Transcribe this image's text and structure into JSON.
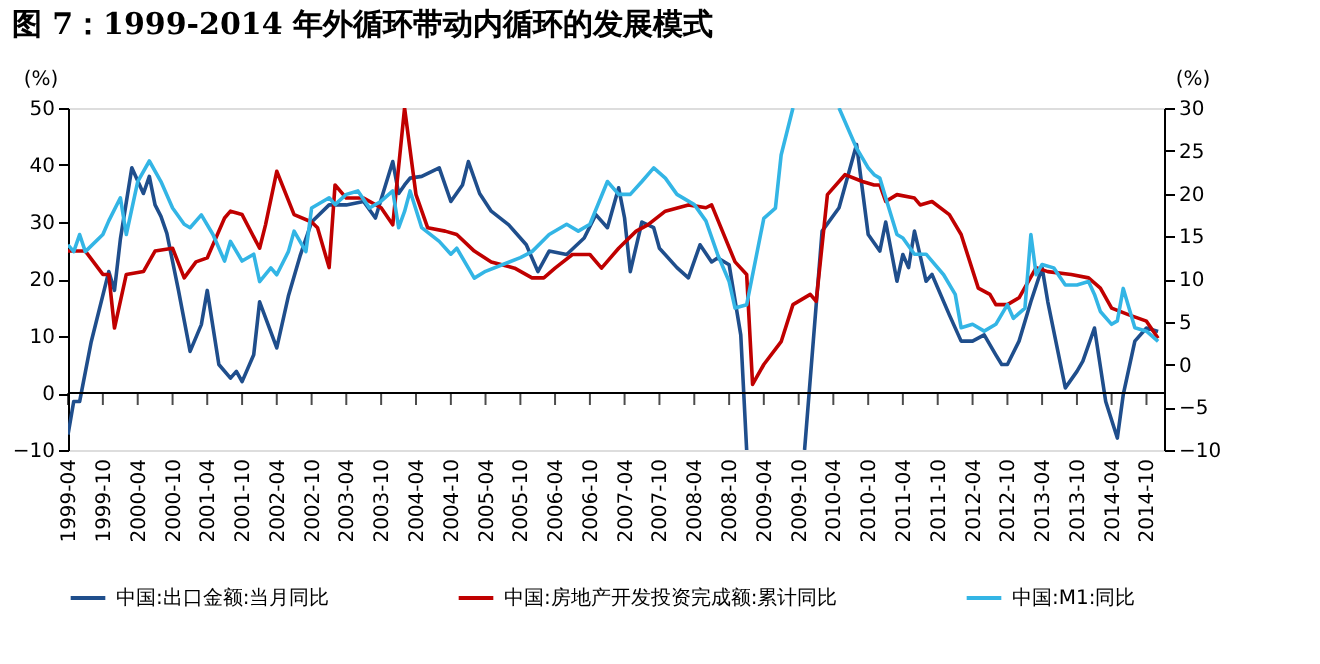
{
  "chart_data": {
    "type": "line",
    "title": "图 7：1999-2014 年外循环带动内循环的发展模式",
    "ylabel": "(%)",
    "y2label": "(%)",
    "xlim": [
      "1999-04",
      "2015-01"
    ],
    "xticks": [
      {
        "value": "1999-04",
        "label": "1999-04"
      },
      {
        "value": "1999-10",
        "label": "1999-10"
      },
      {
        "value": "2000-04",
        "label": "2000-04"
      },
      {
        "value": "2000-10",
        "label": "2000-10"
      },
      {
        "value": "2001-04",
        "label": "2001-04"
      },
      {
        "value": "2001-10",
        "label": "2001-10"
      },
      {
        "value": "2002-04",
        "label": "2002-04"
      },
      {
        "value": "2002-10",
        "label": "2002-10"
      },
      {
        "value": "2003-04",
        "label": "2003-04"
      },
      {
        "value": "2003-10",
        "label": "2003-10"
      },
      {
        "value": "2004-04",
        "label": "2004-04"
      },
      {
        "value": "2004-10",
        "label": "2004-10"
      },
      {
        "value": "2005-04",
        "label": "2005-04"
      },
      {
        "value": "2005-10",
        "label": "2005-10"
      },
      {
        "value": "2006-04",
        "label": "2006-04"
      },
      {
        "value": "2006-10",
        "label": "2006-10"
      },
      {
        "value": "2007-04",
        "label": "2007-04"
      },
      {
        "value": "2007-10",
        "label": "2007-10"
      },
      {
        "value": "2008-04",
        "label": "2008-04"
      },
      {
        "value": "2008-10",
        "label": "2008-10"
      },
      {
        "value": "2009-04",
        "label": "2009-04"
      },
      {
        "value": "2009-10",
        "label": "2009-10"
      },
      {
        "value": "2010-04",
        "label": "2010-04"
      },
      {
        "value": "2010-10",
        "label": "2010-10"
      },
      {
        "value": "2011-04",
        "label": "2011-04"
      },
      {
        "value": "2011-10",
        "label": "2011-10"
      },
      {
        "value": "2012-04",
        "label": "2012-04"
      },
      {
        "value": "2012-10",
        "label": "2012-10"
      },
      {
        "value": "2013-04",
        "label": "2013-04"
      },
      {
        "value": "2013-10",
        "label": "2013-10"
      },
      {
        "value": "2014-04",
        "label": "2014-04"
      },
      {
        "value": "2014-10",
        "label": "2014-10"
      }
    ],
    "ylim": [
      -10,
      50
    ],
    "yticks": [
      -10,
      0,
      10,
      20,
      30,
      40,
      50
    ],
    "y2lim": [
      -10,
      30
    ],
    "y2ticks": [
      -10,
      -5,
      0,
      5,
      10,
      15,
      20,
      25,
      30
    ],
    "legend": "bottom",
    "line_style": "solid",
    "series": [
      {
        "name": "中国:出口金额:当月同比",
        "color": "#1f4e8c",
        "x": [
          "1999-04",
          "1999-05",
          "1999-06",
          "1999-08",
          "1999-11",
          "1999-12",
          "2000-01",
          "2000-03",
          "2000-05",
          "2000-06",
          "2000-07",
          "2000-08",
          "2000-09",
          "2000-11",
          "2001-01",
          "2001-03",
          "2001-04",
          "2001-06",
          "2001-08",
          "2001-09",
          "2001-10",
          "2001-12",
          "2002-01",
          "2002-04",
          "2002-06",
          "2002-08",
          "2002-10",
          "2003-01",
          "2003-04",
          "2003-07",
          "2003-09",
          "2003-12",
          "2004-01",
          "2004-02",
          "2004-03",
          "2004-05",
          "2004-08",
          "2004-10",
          "2004-12",
          "2005-01",
          "2005-03",
          "2005-05",
          "2005-08",
          "2005-11",
          "2006-01",
          "2006-03",
          "2006-06",
          "2006-09",
          "2006-11",
          "2007-01",
          "2007-03",
          "2007-04",
          "2007-05",
          "2007-07",
          "2007-09",
          "2007-10",
          "2008-01",
          "2008-03",
          "2008-05",
          "2008-07",
          "2008-08",
          "2008-10",
          "2008-12",
          "2009-01",
          "2009-06",
          "2009-11",
          "2010-02",
          "2010-05",
          "2010-08",
          "2010-10",
          "2010-12",
          "2011-01",
          "2011-03",
          "2011-04",
          "2011-05",
          "2011-06",
          "2011-08",
          "2011-09",
          "2011-12",
          "2012-02",
          "2012-04",
          "2012-06",
          "2012-08",
          "2012-09",
          "2012-10",
          "2012-12",
          "2013-02",
          "2013-04",
          "2013-05",
          "2013-08",
          "2013-10",
          "2013-11",
          "2014-01",
          "2014-03",
          "2014-05",
          "2014-06",
          "2014-08",
          "2014-10",
          "2014-12"
        ],
        "values": [
          -7.3,
          -1.5,
          -1.5,
          9,
          21.3,
          18,
          27,
          39.5,
          35,
          38,
          33,
          31,
          28,
          18,
          7.3,
          12,
          18,
          5,
          2.6,
          3.8,
          2,
          6.7,
          16,
          7.9,
          17,
          24,
          30,
          33,
          33,
          33.6,
          30.7,
          40.6,
          35,
          36.5,
          37.7,
          38,
          39.5,
          33.6,
          36.5,
          40.6,
          35,
          31.9,
          29.5,
          26,
          21.3,
          24.9,
          24.3,
          27.2,
          31.3,
          29,
          36,
          30.7,
          21.3,
          30,
          29,
          25.4,
          22,
          20.2,
          26,
          23,
          23.7,
          22.5,
          10.2,
          -10,
          null,
          -10,
          28.4,
          32.5,
          43.6,
          27.8,
          24.9,
          30,
          19.6,
          24.3,
          22,
          28.4,
          19.6,
          20.8,
          13.7,
          9.1,
          9.1,
          10.2,
          6.7,
          5,
          5,
          9.1,
          16,
          22,
          16,
          0.9,
          3.8,
          5.6,
          11.4,
          -1.5,
          -7.9,
          -0.3,
          9.1,
          11.4,
          10.8
        ]
      },
      {
        "name": "中国:房地产开发投资完成额:累计同比",
        "color": "#c00000",
        "x": [
          "1999-04",
          "1999-07",
          "1999-10",
          "1999-11",
          "1999-12",
          "2000-02",
          "2000-05",
          "2000-07",
          "2000-10",
          "2000-12",
          "2001-02",
          "2001-04",
          "2001-07",
          "2001-08",
          "2001-10",
          "2002-01",
          "2002-02",
          "2002-04",
          "2002-07",
          "2002-10",
          "2002-11",
          "2003-01",
          "2003-02",
          "2003-04",
          "2003-07",
          "2003-10",
          "2003-12",
          "2004-02",
          "2004-04",
          "2004-06",
          "2004-09",
          "2004-11",
          "2005-02",
          "2005-05",
          "2005-09",
          "2005-12",
          "2006-02",
          "2006-04",
          "2006-07",
          "2006-10",
          "2006-12",
          "2007-03",
          "2007-06",
          "2007-08",
          "2007-11",
          "2008-03",
          "2008-06",
          "2008-07",
          "2008-11",
          "2009-01",
          "2009-02",
          "2009-04",
          "2009-07",
          "2009-09",
          "2009-12",
          "2010-01",
          "2010-03",
          "2010-06",
          "2010-09",
          "2010-11",
          "2010-12",
          "2011-01",
          "2011-03",
          "2011-06",
          "2011-07",
          "2011-09",
          "2011-12",
          "2012-02",
          "2012-05",
          "2012-07",
          "2012-08",
          "2012-10",
          "2012-12",
          "2013-03",
          "2013-05",
          "2013-09",
          "2013-12",
          "2014-02",
          "2014-04",
          "2014-07",
          "2014-10",
          "2014-12"
        ],
        "values": [
          24.9,
          24.9,
          20.8,
          20.8,
          11.4,
          20.8,
          21.3,
          24.9,
          25.4,
          20.2,
          23,
          23.7,
          30.7,
          31.9,
          31.3,
          25.4,
          29.5,
          38.9,
          31.3,
          30,
          29,
          22,
          36.5,
          34.2,
          34.2,
          32.5,
          29.5,
          50,
          34.8,
          29,
          28.4,
          27.8,
          24.9,
          23,
          21.9,
          20.2,
          20.2,
          21.9,
          24.3,
          24.3,
          21.9,
          25.4,
          28.4,
          29.5,
          31.9,
          33,
          32.5,
          33,
          23,
          20.8,
          1.5,
          5,
          9,
          15.5,
          17.3,
          16.1,
          34.8,
          38.3,
          37.1,
          36.5,
          36.5,
          33.6,
          34.8,
          34.2,
          33,
          33.6,
          31.3,
          27.8,
          18.4,
          17.3,
          15.5,
          15.5,
          16.7,
          22,
          21.3,
          20.8,
          20.2,
          18.4,
          14.9,
          13.7,
          12.6,
          9.6
        ]
      },
      {
        "name": "中国:M1:同比",
        "color": "#33b5e5",
        "axis": "y2",
        "x": [
          "1999-04",
          "1999-05",
          "1999-06",
          "1999-07",
          "1999-10",
          "1999-11",
          "2000-01",
          "2000-02",
          "2000-04",
          "2000-06",
          "2000-08",
          "2000-10",
          "2000-12",
          "2001-01",
          "2001-03",
          "2001-05",
          "2001-07",
          "2001-08",
          "2001-10",
          "2001-12",
          "2002-01",
          "2002-03",
          "2002-04",
          "2002-06",
          "2002-07",
          "2002-09",
          "2002-10",
          "2003-01",
          "2003-02",
          "2003-04",
          "2003-06",
          "2003-08",
          "2003-10",
          "2003-12",
          "2004-01",
          "2004-02",
          "2004-03",
          "2004-05",
          "2004-08",
          "2004-10",
          "2004-11",
          "2005-02",
          "2005-04",
          "2005-07",
          "2005-10",
          "2005-12",
          "2006-03",
          "2006-06",
          "2006-08",
          "2006-10",
          "2007-01",
          "2007-03",
          "2007-05",
          "2007-07",
          "2007-09",
          "2007-11",
          "2008-01",
          "2008-04",
          "2008-06",
          "2008-08",
          "2008-10",
          "2008-11",
          "2009-01",
          "2009-04",
          "2009-06",
          "2009-07",
          "2009-09",
          "2010-01",
          "2010-05",
          "2010-08",
          "2010-10",
          "2010-11",
          "2010-12",
          "2011-01",
          "2011-03",
          "2011-04",
          "2011-06",
          "2011-08",
          "2011-11",
          "2012-01",
          "2012-02",
          "2012-04",
          "2012-06",
          "2012-08",
          "2012-10",
          "2012-11",
          "2013-01",
          "2013-02",
          "2013-03",
          "2013-04",
          "2013-06",
          "2013-08",
          "2013-10",
          "2013-12",
          "2014-01",
          "2014-02",
          "2014-04",
          "2014-05",
          "2014-06",
          "2014-08",
          "2014-10",
          "2014-12"
        ],
        "values": [
          14,
          13.2,
          15.2,
          13.2,
          15.2,
          16.8,
          19.5,
          15.2,
          21.4,
          23.8,
          21.4,
          18.3,
          16.4,
          16,
          17.5,
          15.2,
          12.1,
          14.4,
          12.1,
          12.9,
          9.7,
          11.3,
          10.5,
          13.2,
          15.6,
          13.2,
          18.3,
          19.5,
          18.7,
          19.9,
          20.3,
          18.3,
          19.1,
          20.3,
          16,
          17.9,
          20.3,
          16,
          14.4,
          12.9,
          13.6,
          10.1,
          10.9,
          11.7,
          12.5,
          13.2,
          15.2,
          16.4,
          15.6,
          16.4,
          21.4,
          19.9,
          19.9,
          21.4,
          23,
          21.8,
          19.9,
          18.7,
          16.8,
          12.9,
          9.7,
          6.6,
          7,
          17.1,
          18.3,
          24.5,
          30,
          null,
          30,
          25.3,
          23,
          22.2,
          21.8,
          19.5,
          15.2,
          14.8,
          12.9,
          12.9,
          10.5,
          8.2,
          4.3,
          4.7,
          3.9,
          4.7,
          7,
          5.4,
          6.6,
          15.2,
          10.5,
          11.7,
          11.3,
          9.3,
          9.3,
          9.7,
          8.2,
          6.2,
          4.7,
          5.1,
          8.9,
          4.3,
          3.9,
          2.7
        ]
      }
    ]
  }
}
